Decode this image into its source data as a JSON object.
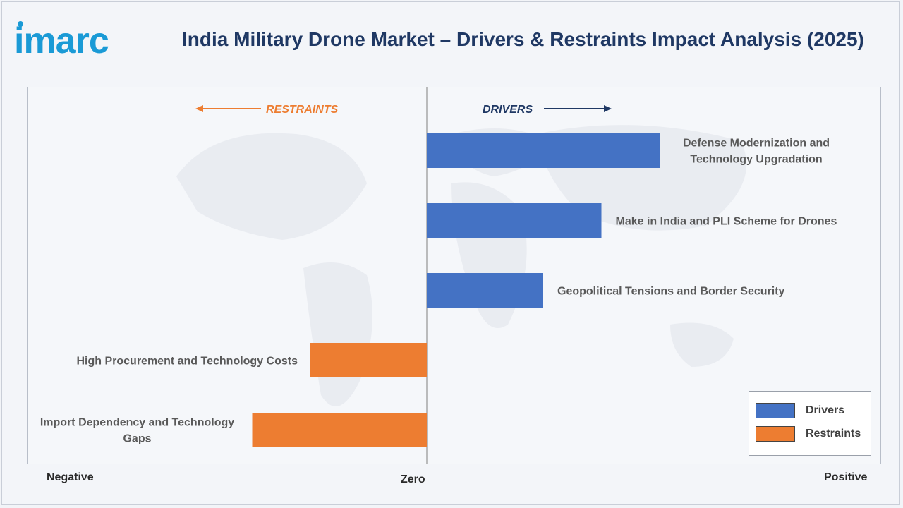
{
  "header": {
    "logo_text": "imarc",
    "title": "India Military Drone Market – Drivers & Restraints Impact Analysis (2025)"
  },
  "direction_labels": {
    "restraints": "RESTRAINTS",
    "drivers": "DRIVERS"
  },
  "axis": {
    "negative": "Negative",
    "zero": "Zero",
    "positive": "Positive"
  },
  "legend": {
    "items": [
      {
        "label": "Drivers",
        "color": "#4472c4"
      },
      {
        "label": "Restraints",
        "color": "#ed7d31"
      }
    ]
  },
  "colors": {
    "drivers": "#4472c4",
    "restraints": "#ed7d31",
    "drivers_arrow": "#1f3864",
    "restraints_arrow": "#ed7d31"
  },
  "chart_data": {
    "type": "bar",
    "orientation": "horizontal",
    "xlim": [
      -3.5,
      4
    ],
    "categories": [
      "Defense Modernization and Technology Upgradation",
      "Make in India and PLI Scheme for Drones",
      "Geopolitical Tensions and Border Security",
      "High Procurement and Technology Costs",
      "Import Dependency and Technology Gaps"
    ],
    "series": [
      {
        "name": "Drivers",
        "values": [
          2,
          1.5,
          1,
          null,
          null
        ]
      },
      {
        "name": "Restraints",
        "values": [
          null,
          null,
          null,
          -1,
          -1.5
        ]
      }
    ],
    "grid": false,
    "legend_position": "bottom-right"
  }
}
